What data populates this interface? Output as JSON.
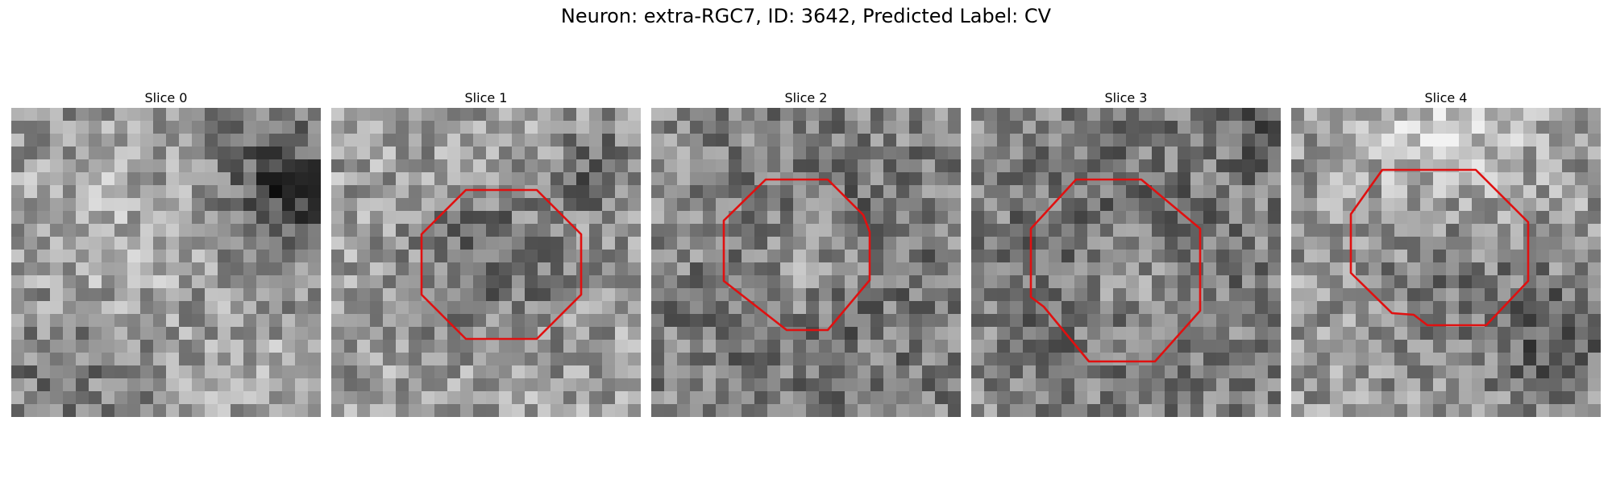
{
  "figure": {
    "title": "Neuron: extra-RGC7, ID: 3642, Predicted Label: CV"
  },
  "colors": {
    "contour": "#e01010",
    "background": "#ffffff"
  },
  "panels": [
    {
      "title": "Slice 0",
      "has_contour": false
    },
    {
      "title": "Slice 1",
      "has_contour": true
    },
    {
      "title": "Slice 2",
      "has_contour": true
    },
    {
      "title": "Slice 3",
      "has_contour": true
    },
    {
      "title": "Slice 4",
      "has_contour": true
    }
  ]
}
